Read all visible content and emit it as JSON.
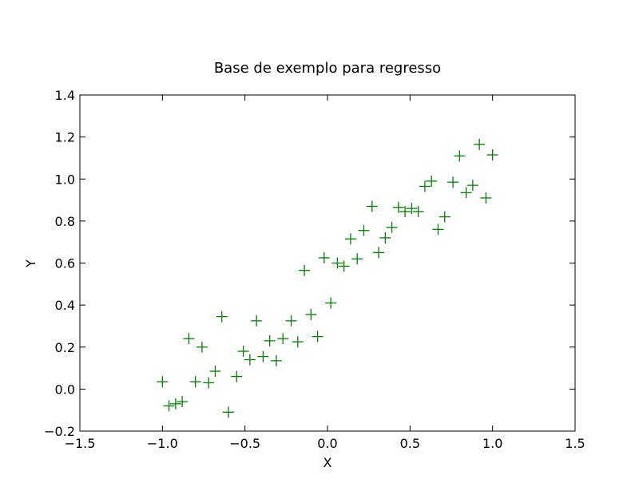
{
  "chart_data": {
    "type": "scatter",
    "title": "Base de exemplo para regresso",
    "xlabel": "X",
    "ylabel": "Y",
    "xlim": [
      -1.5,
      1.5
    ],
    "ylim": [
      -0.2,
      1.4
    ],
    "xticks": [
      -1.5,
      -1.0,
      -0.5,
      0.0,
      0.5,
      1.0,
      1.5
    ],
    "xtick_labels": [
      "−1.5",
      "−1.0",
      "−0.5",
      "0.0",
      "0.5",
      "1.0",
      "1.5"
    ],
    "yticks": [
      -0.2,
      0.0,
      0.2,
      0.4,
      0.6,
      0.8,
      1.0,
      1.2,
      1.4
    ],
    "ytick_labels": [
      "−0.2",
      "0.0",
      "0.2",
      "0.4",
      "0.6",
      "0.8",
      "1.0",
      "1.2",
      "1.4"
    ],
    "grid": false,
    "marker": "+",
    "color": "#008000",
    "points": [
      [
        -1.0,
        0.035
      ],
      [
        -0.96,
        -0.08
      ],
      [
        -0.92,
        -0.07
      ],
      [
        -0.88,
        -0.06
      ],
      [
        -0.84,
        0.24
      ],
      [
        -0.8,
        0.035
      ],
      [
        -0.76,
        0.2
      ],
      [
        -0.72,
        0.03
      ],
      [
        -0.68,
        0.085
      ],
      [
        -0.64,
        0.345
      ],
      [
        -0.6,
        -0.11
      ],
      [
        -0.55,
        0.06
      ],
      [
        -0.51,
        0.18
      ],
      [
        -0.47,
        0.14
      ],
      [
        -0.43,
        0.325
      ],
      [
        -0.39,
        0.155
      ],
      [
        -0.35,
        0.23
      ],
      [
        -0.31,
        0.135
      ],
      [
        -0.27,
        0.24
      ],
      [
        -0.22,
        0.325
      ],
      [
        -0.18,
        0.225
      ],
      [
        -0.14,
        0.565
      ],
      [
        -0.1,
        0.355
      ],
      [
        -0.06,
        0.25
      ],
      [
        -0.02,
        0.625
      ],
      [
        0.02,
        0.41
      ],
      [
        0.06,
        0.6
      ],
      [
        0.1,
        0.585
      ],
      [
        0.14,
        0.715
      ],
      [
        0.18,
        0.62
      ],
      [
        0.22,
        0.755
      ],
      [
        0.27,
        0.87
      ],
      [
        0.31,
        0.65
      ],
      [
        0.35,
        0.72
      ],
      [
        0.39,
        0.77
      ],
      [
        0.43,
        0.865
      ],
      [
        0.47,
        0.845
      ],
      [
        0.51,
        0.86
      ],
      [
        0.55,
        0.845
      ],
      [
        0.59,
        0.965
      ],
      [
        0.63,
        0.99
      ],
      [
        0.67,
        0.76
      ],
      [
        0.71,
        0.82
      ],
      [
        0.76,
        0.985
      ],
      [
        0.8,
        1.11
      ],
      [
        0.84,
        0.935
      ],
      [
        0.88,
        0.97
      ],
      [
        0.92,
        1.165
      ],
      [
        0.96,
        0.91
      ],
      [
        1.0,
        1.115
      ]
    ]
  }
}
